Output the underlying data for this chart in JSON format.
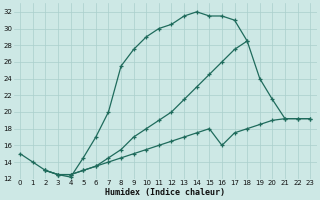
{
  "xlabel": "Humidex (Indice chaleur)",
  "background_color": "#cde8e5",
  "grid_color": "#aacfcc",
  "line_color": "#1f6b5c",
  "xlim": [
    -0.5,
    23.5
  ],
  "ylim": [
    12,
    33
  ],
  "xticks": [
    0,
    1,
    2,
    3,
    4,
    5,
    6,
    7,
    8,
    9,
    10,
    11,
    12,
    13,
    14,
    15,
    16,
    17,
    18,
    19,
    20,
    21,
    22,
    23
  ],
  "yticks": [
    12,
    14,
    16,
    18,
    20,
    22,
    24,
    26,
    28,
    30,
    32
  ],
  "curve1_x": [
    0,
    1,
    2,
    3,
    4,
    5,
    6,
    7,
    8,
    9,
    10,
    11,
    12,
    13,
    14,
    15,
    16,
    17,
    18
  ],
  "curve1_y": [
    15,
    14,
    13,
    12.5,
    12.2,
    14.5,
    17,
    20,
    25.5,
    27.5,
    29,
    30,
    30.5,
    31.5,
    32,
    31.5,
    31.5,
    31,
    28.5
  ],
  "curve2_x": [
    2,
    3,
    4,
    5,
    6,
    7,
    8,
    9,
    10,
    11,
    12,
    13,
    14,
    15,
    16,
    17,
    18,
    19,
    20,
    21,
    22,
    23
  ],
  "curve2_y": [
    13,
    12.5,
    12.5,
    13,
    13.5,
    14.5,
    15.5,
    17,
    18,
    19,
    20,
    21.5,
    23,
    24.5,
    26,
    27.5,
    28.5,
    24,
    21.5,
    19.2,
    19.2,
    19.2
  ],
  "curve3_x": [
    2,
    3,
    4,
    5,
    6,
    7,
    8,
    9,
    10,
    11,
    12,
    13,
    14,
    15,
    16,
    17,
    18,
    19,
    20,
    21,
    22,
    23
  ],
  "curve3_y": [
    13,
    12.5,
    12.5,
    13,
    13.5,
    14,
    14.5,
    15,
    15.5,
    16,
    16.5,
    17,
    17.5,
    18,
    16,
    17.5,
    18,
    18.5,
    19,
    19.2,
    19.2,
    19.2
  ]
}
